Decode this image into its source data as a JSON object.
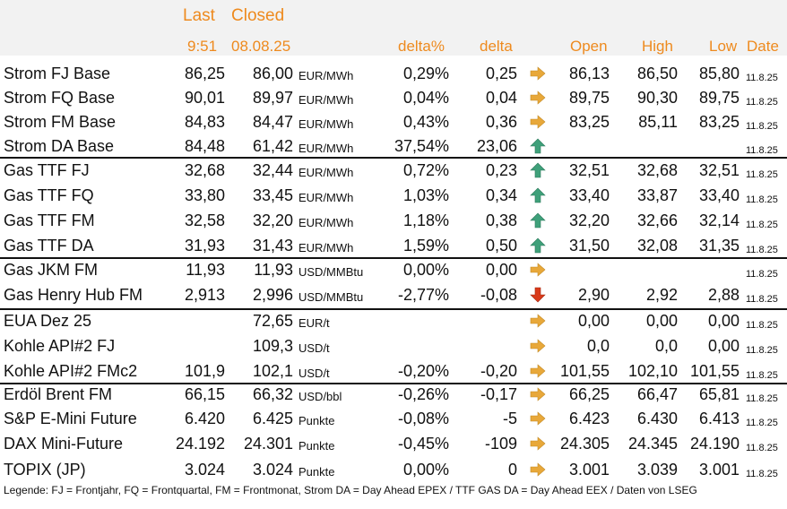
{
  "header": {
    "last": "Last",
    "closed": "Closed",
    "last_time": "9:51",
    "closed_date": "08.08.25",
    "delta_pct": "delta%",
    "delta": "delta",
    "open": "Open",
    "high": "High",
    "low": "Low",
    "date": "Date"
  },
  "rows": [
    {
      "name": "Strom FJ Base",
      "last": "86,25",
      "closed": "86,00",
      "unit": "EUR/MWh",
      "pct": "0,29%",
      "delta": "0,25",
      "trend": "right",
      "open": "86,13",
      "high": "86,50",
      "low": "85,80",
      "date": "11.8.25"
    },
    {
      "name": "Strom FQ Base",
      "last": "90,01",
      "closed": "89,97",
      "unit": "EUR/MWh",
      "pct": "0,04%",
      "delta": "0,04",
      "trend": "right",
      "open": "89,75",
      "high": "90,30",
      "low": "89,75",
      "date": "11.8.25"
    },
    {
      "name": "Strom FM Base",
      "last": "84,83",
      "closed": "84,47",
      "unit": "EUR/MWh",
      "pct": "0,43%",
      "delta": "0,36",
      "trend": "right",
      "open": "83,25",
      "high": "85,11",
      "low": "83,25",
      "date": "11.8.25"
    },
    {
      "name": "Strom DA Base",
      "last": "84,48",
      "closed": "61,42",
      "unit": "EUR/MWh",
      "pct": "37,54%",
      "delta": "23,06",
      "trend": "up",
      "open": "",
      "high": "",
      "low": "",
      "date": "11.8.25"
    },
    {
      "name": "Gas TTF FJ",
      "last": "32,68",
      "closed": "32,44",
      "unit": "EUR/MWh",
      "pct": "0,72%",
      "delta": "0,23",
      "trend": "up",
      "open": "32,51",
      "high": "32,68",
      "low": "32,51",
      "date": "11.8.25"
    },
    {
      "name": "Gas TTF FQ",
      "last": "33,80",
      "closed": "33,45",
      "unit": "EUR/MWh",
      "pct": "1,03%",
      "delta": "0,34",
      "trend": "up",
      "open": "33,40",
      "high": "33,87",
      "low": "33,40",
      "date": "11.8.25"
    },
    {
      "name": "Gas TTF FM",
      "last": "32,58",
      "closed": "32,20",
      "unit": "EUR/MWh",
      "pct": "1,18%",
      "delta": "0,38",
      "trend": "up",
      "open": "32,20",
      "high": "32,66",
      "low": "32,14",
      "date": "11.8.25"
    },
    {
      "name": "Gas TTF DA",
      "last": "31,93",
      "closed": "31,43",
      "unit": "EUR/MWh",
      "pct": "1,59%",
      "delta": "0,50",
      "trend": "up",
      "open": "31,50",
      "high": "32,08",
      "low": "31,35",
      "date": "11.8.25"
    },
    {
      "name": "Gas JKM FM",
      "last": "11,93",
      "closed": "11,93",
      "unit": "USD/MMBtu",
      "pct": "0,00%",
      "delta": "0,00",
      "trend": "right",
      "open": "",
      "high": "",
      "low": "",
      "date": "11.8.25"
    },
    {
      "name": "Gas Henry Hub FM",
      "last": "2,913",
      "closed": "2,996",
      "unit": "USD/MMBtu",
      "pct": "-2,77%",
      "delta": "-0,08",
      "trend": "down",
      "open": "2,90",
      "high": "2,92",
      "low": "2,88",
      "date": "11.8.25"
    },
    {
      "name": "EUA Dez 25",
      "last": "",
      "closed": "72,65",
      "unit": "EUR/t",
      "pct": "",
      "delta": "",
      "trend": "right",
      "open": "0,00",
      "high": "0,00",
      "low": "0,00",
      "date": "11.8.25"
    },
    {
      "name": "Kohle API#2 FJ",
      "last": "",
      "closed": "109,3",
      "unit": "USD/t",
      "pct": "",
      "delta": "",
      "trend": "right",
      "open": "0,0",
      "high": "0,0",
      "low": "0,00",
      "date": "11.8.25"
    },
    {
      "name": "Kohle API#2 FMc2",
      "last": "101,9",
      "closed": "102,1",
      "unit": "USD/t",
      "pct": "-0,20%",
      "delta": "-0,20",
      "trend": "right",
      "open": "101,55",
      "high": "102,10",
      "low": "101,55",
      "date": "11.8.25"
    },
    {
      "name": "Erdöl Brent FM",
      "last": "66,15",
      "closed": "66,32",
      "unit": "USD/bbl",
      "pct": "-0,26%",
      "delta": "-0,17",
      "trend": "right",
      "open": "66,25",
      "high": "66,47",
      "low": "65,81",
      "date": "11.8.25"
    },
    {
      "name": "S&P E-Mini Future",
      "last": "6.420",
      "closed": "6.425",
      "unit": "Punkte",
      "pct": "-0,08%",
      "delta": "-5",
      "trend": "right",
      "open": "6.423",
      "high": "6.430",
      "low": "6.413",
      "date": "11.8.25"
    },
    {
      "name": "DAX Mini-Future",
      "last": "24.192",
      "closed": "24.301",
      "unit": "Punkte",
      "pct": "-0,45%",
      "delta": "-109",
      "trend": "right",
      "open": "24.305",
      "high": "24.345",
      "low": "24.190",
      "date": "11.8.25"
    },
    {
      "name": "TOPIX (JP)",
      "last": "3.024",
      "closed": "3.024",
      "unit": "Punkte",
      "pct": "0,00%",
      "delta": "0",
      "trend": "right",
      "open": "3.001",
      "high": "3.039",
      "low": "3.001",
      "date": "11.8.25"
    }
  ],
  "legend": "Legende: FJ = Frontjahr, FQ = Frontquartal, FM = Frontmonat, Strom DA = Day Ahead EPEX / TTF GAS DA = Day Ahead EEX / Daten von LSEG",
  "colors": {
    "header_text": "#ee8a1e",
    "header_bg": "#f2f2f2",
    "up": "#3fa07a",
    "down": "#d93a1a",
    "right": "#e8a83a"
  }
}
